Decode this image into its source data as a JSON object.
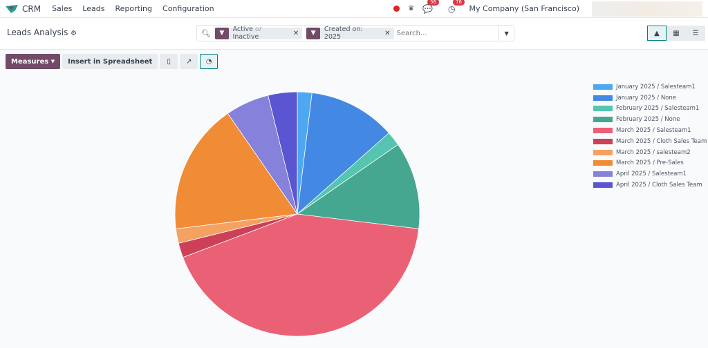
{
  "nav": {
    "app": "CRM",
    "menus": [
      "Sales",
      "Leads",
      "Reporting",
      "Configuration"
    ],
    "messages_count": "56",
    "activities_count": "76",
    "company": "My Company (San Francisco)"
  },
  "header": {
    "title": "Leads Analysis"
  },
  "search": {
    "facets": [
      {
        "label_a": "Active",
        "label_or": "or",
        "label_b": "Inactive"
      },
      {
        "label": "Created on: 2025"
      }
    ],
    "placeholder": "Search..."
  },
  "toolbar": {
    "measures": "Measures",
    "insert": "Insert in Spreadsheet"
  },
  "colors": {
    "brand": "#714b67",
    "accent": "#017e84"
  },
  "chart_data": {
    "type": "pie",
    "labels": [
      "January 2025 / Salesteam1",
      "January 2025 / None",
      "February 2025 / Salesteam1",
      "February 2025 / None",
      "March 2025 / Salesteam1",
      "March 2025 / Cloth Sales Team",
      "March 2025 / salesteam2",
      "March 2025 / Pre-Sales",
      "April 2025 / Salesteam1",
      "April 2025 / Cloth Sales Team"
    ],
    "values": [
      1,
      6,
      1,
      6,
      22,
      1,
      1,
      9,
      3,
      2
    ],
    "colors": [
      "#4ea7f2",
      "#4389e3",
      "#55c4b0",
      "#45a78f",
      "#ea6175",
      "#cc4058",
      "#f4a261",
      "#f18c36",
      "#8681db",
      "#5a56d1"
    ],
    "legend": "right"
  }
}
